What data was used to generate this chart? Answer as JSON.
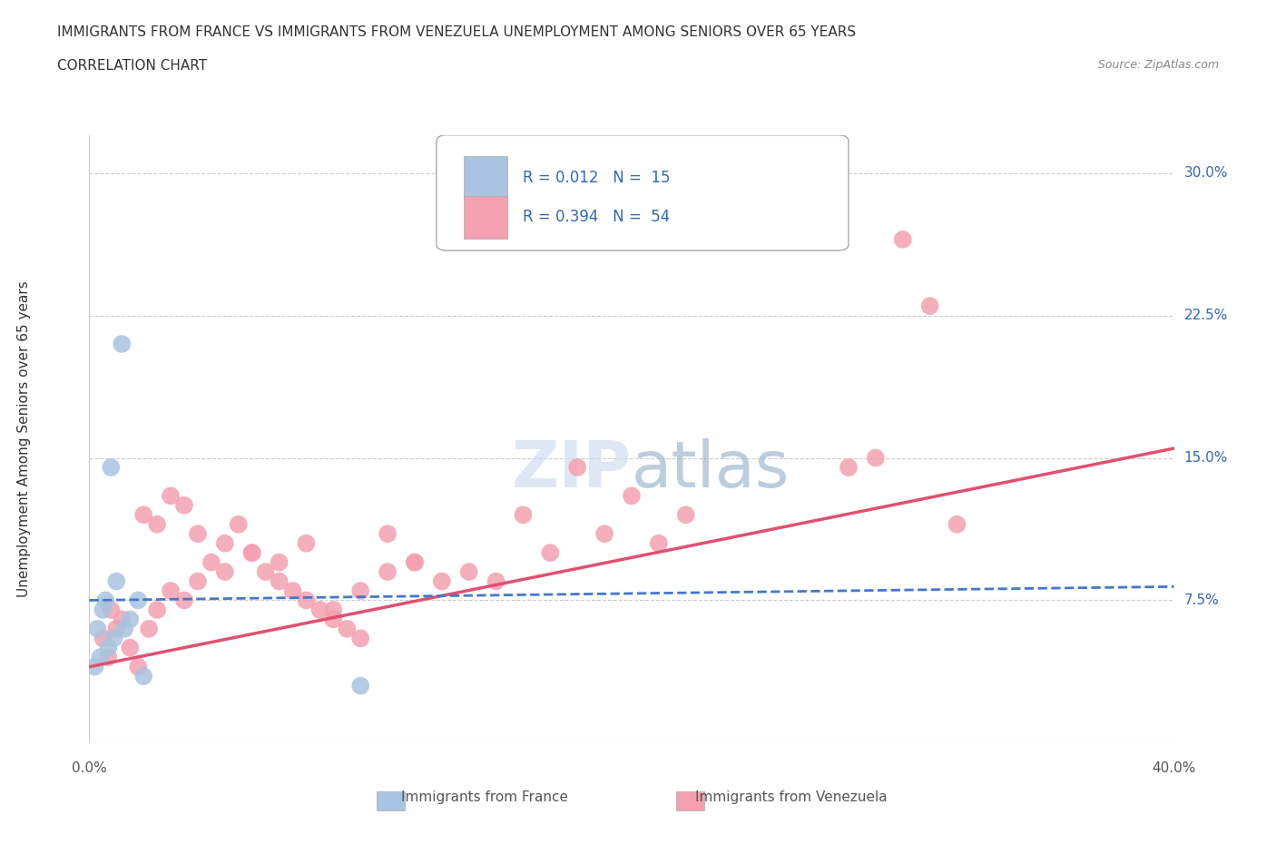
{
  "title_line1": "IMMIGRANTS FROM FRANCE VS IMMIGRANTS FROM VENEZUELA UNEMPLOYMENT AMONG SENIORS OVER 65 YEARS",
  "title_line2": "CORRELATION CHART",
  "source_text": "Source: ZipAtlas.com",
  "ylabel": "Unemployment Among Seniors over 65 years",
  "xlim": [
    0.0,
    0.4
  ],
  "ylim": [
    0.0,
    0.32
  ],
  "yticks": [
    0.075,
    0.15,
    0.225,
    0.3
  ],
  "yticklabels": [
    "7.5%",
    "15.0%",
    "22.5%",
    "30.0%"
  ],
  "grid_color": "#cccccc",
  "background_color": "#ffffff",
  "france_color": "#a8c4e0",
  "venezuela_color": "#f4a0b0",
  "france_line_color": "#4477cc",
  "venezuela_line_color": "#e05070",
  "france_R": "0.012",
  "france_N": "15",
  "venezuela_R": "0.394",
  "venezuela_N": "54",
  "legend_label_france": "Immigrants from France",
  "legend_label_venezuela": "Immigrants from Venezuela",
  "france_x": [
    0.005,
    0.012,
    0.008,
    0.015,
    0.003,
    0.006,
    0.01,
    0.018,
    0.007,
    0.004,
    0.002,
    0.009,
    0.02,
    0.013,
    0.1
  ],
  "france_y": [
    0.07,
    0.21,
    0.145,
    0.065,
    0.06,
    0.075,
    0.085,
    0.075,
    0.05,
    0.045,
    0.04,
    0.055,
    0.035,
    0.06,
    0.03
  ],
  "venezuela_x": [
    0.005,
    0.008,
    0.012,
    0.015,
    0.01,
    0.007,
    0.018,
    0.022,
    0.025,
    0.03,
    0.035,
    0.04,
    0.05,
    0.06,
    0.07,
    0.08,
    0.09,
    0.1,
    0.11,
    0.12,
    0.13,
    0.14,
    0.15,
    0.02,
    0.025,
    0.03,
    0.035,
    0.04,
    0.045,
    0.05,
    0.055,
    0.06,
    0.065,
    0.07,
    0.075,
    0.08,
    0.085,
    0.09,
    0.095,
    0.1,
    0.11,
    0.12,
    0.16,
    0.17,
    0.18,
    0.19,
    0.2,
    0.21,
    0.22,
    0.28,
    0.29,
    0.3,
    0.31,
    0.32
  ],
  "venezuela_y": [
    0.055,
    0.07,
    0.065,
    0.05,
    0.06,
    0.045,
    0.04,
    0.06,
    0.07,
    0.08,
    0.075,
    0.085,
    0.09,
    0.1,
    0.095,
    0.105,
    0.07,
    0.08,
    0.11,
    0.095,
    0.085,
    0.09,
    0.085,
    0.12,
    0.115,
    0.13,
    0.125,
    0.11,
    0.095,
    0.105,
    0.115,
    0.1,
    0.09,
    0.085,
    0.08,
    0.075,
    0.07,
    0.065,
    0.06,
    0.055,
    0.09,
    0.095,
    0.12,
    0.1,
    0.145,
    0.11,
    0.13,
    0.105,
    0.12,
    0.145,
    0.15,
    0.265,
    0.23,
    0.115
  ],
  "vline_intercept": 0.04,
  "vline_slope": 0.2875,
  "fline_intercept": 0.075,
  "fline_slope": 0.018
}
